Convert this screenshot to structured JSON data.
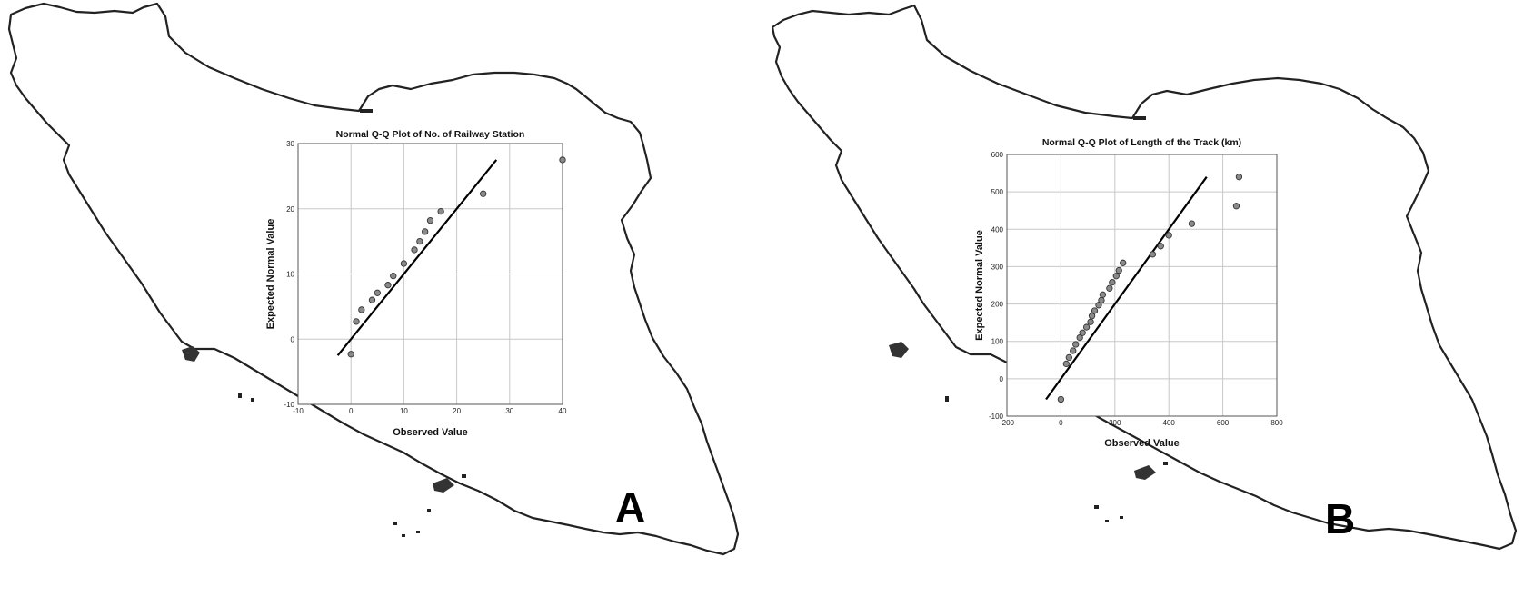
{
  "panels": [
    {
      "letter": "A",
      "chart_data": {
        "type": "scatter",
        "title": "Normal Q-Q Plot of No. of Railway Station",
        "xlabel": "Observed Value",
        "ylabel": "Expected Normal Value",
        "xlim": [
          -10,
          40
        ],
        "ylim": [
          -10,
          30
        ],
        "xticks": [
          -10,
          0,
          10,
          20,
          30,
          40
        ],
        "yticks": [
          -10,
          0,
          10,
          20,
          30
        ],
        "grid": true,
        "points": [
          {
            "x": 0,
            "y": -2.3
          },
          {
            "x": 1,
            "y": 2.7
          },
          {
            "x": 2,
            "y": 4.5
          },
          {
            "x": 4,
            "y": 6.0
          },
          {
            "x": 5,
            "y": 7.1
          },
          {
            "x": 7,
            "y": 8.3
          },
          {
            "x": 8,
            "y": 9.7
          },
          {
            "x": 10,
            "y": 11.6
          },
          {
            "x": 12,
            "y": 13.7
          },
          {
            "x": 13,
            "y": 15.0
          },
          {
            "x": 14,
            "y": 16.5
          },
          {
            "x": 15,
            "y": 18.2
          },
          {
            "x": 17,
            "y": 19.6
          },
          {
            "x": 25,
            "y": 22.3
          },
          {
            "x": 40,
            "y": 27.5
          }
        ],
        "reference_line": {
          "x": [
            -2.5,
            27.5
          ],
          "y": [
            -2.5,
            27.5
          ]
        }
      }
    },
    {
      "letter": "B",
      "chart_data": {
        "type": "scatter",
        "title": "Normal Q-Q Plot of Length of the Track (km)",
        "xlabel": "Observed Value",
        "ylabel": "Expected Normal Value",
        "xlim": [
          -200,
          800
        ],
        "ylim": [
          -100,
          600
        ],
        "xticks": [
          -200,
          0,
          200,
          400,
          600,
          800
        ],
        "yticks": [
          -100,
          0,
          100,
          200,
          300,
          400,
          500,
          600
        ],
        "grid": true,
        "points": [
          {
            "x": 0,
            "y": -55
          },
          {
            "x": 20,
            "y": 40
          },
          {
            "x": 30,
            "y": 57
          },
          {
            "x": 45,
            "y": 75
          },
          {
            "x": 55,
            "y": 92
          },
          {
            "x": 70,
            "y": 110
          },
          {
            "x": 80,
            "y": 123
          },
          {
            "x": 95,
            "y": 138
          },
          {
            "x": 110,
            "y": 152
          },
          {
            "x": 115,
            "y": 168
          },
          {
            "x": 125,
            "y": 182
          },
          {
            "x": 140,
            "y": 197
          },
          {
            "x": 150,
            "y": 210
          },
          {
            "x": 155,
            "y": 225
          },
          {
            "x": 180,
            "y": 242
          },
          {
            "x": 190,
            "y": 258
          },
          {
            "x": 205,
            "y": 275
          },
          {
            "x": 215,
            "y": 290
          },
          {
            "x": 230,
            "y": 310
          },
          {
            "x": 340,
            "y": 333
          },
          {
            "x": 370,
            "y": 355
          },
          {
            "x": 400,
            "y": 384
          },
          {
            "x": 485,
            "y": 415
          },
          {
            "x": 650,
            "y": 462
          },
          {
            "x": 660,
            "y": 540
          }
        ],
        "reference_line": {
          "x": [
            -55,
            540
          ],
          "y": [
            -55,
            540
          ]
        }
      }
    }
  ]
}
